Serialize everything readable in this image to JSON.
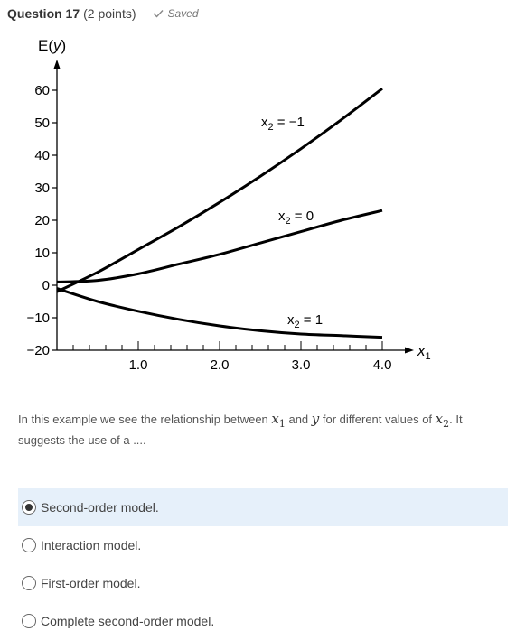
{
  "header": {
    "question_label": "Question 17",
    "points": "(2 points)",
    "saved": "Saved"
  },
  "chart_data": {
    "type": "line",
    "ylabel": "E(y)",
    "xlabel": "x1",
    "xlim": [
      0,
      4.0
    ],
    "ylim": [
      -20,
      60
    ],
    "x_ticks": [
      "1.0",
      "2.0",
      "3.0",
      "4.0"
    ],
    "y_ticks": [
      "60",
      "50",
      "40",
      "30",
      "20",
      "10",
      "0",
      "−10",
      "−20"
    ],
    "y_tick_values": [
      60,
      50,
      40,
      30,
      20,
      10,
      0,
      -10,
      -20
    ],
    "series": [
      {
        "name": "x2 = −1",
        "x": [
          0,
          0.5,
          1.0,
          1.5,
          2.0,
          2.5,
          3.0,
          3.5,
          4.0
        ],
        "values": [
          -2,
          4,
          11,
          18,
          25.5,
          33.5,
          42,
          51,
          60.5
        ]
      },
      {
        "name": "x2 = 0",
        "x": [
          0,
          0.5,
          1.0,
          1.5,
          2.0,
          2.5,
          3.0,
          3.5,
          4.0
        ],
        "values": [
          1,
          1.5,
          3.5,
          6.5,
          9.5,
          13,
          16.5,
          20,
          23
        ]
      },
      {
        "name": "x2 = 1",
        "x": [
          0,
          0.5,
          1.0,
          1.5,
          2.0,
          2.5,
          3.0,
          3.5,
          4.0
        ],
        "values": [
          -1,
          -5,
          -8,
          -10.5,
          -12.5,
          -14,
          -15,
          -15.5,
          -16
        ]
      }
    ]
  },
  "question": {
    "text_1": "In this example we see the relationship between ",
    "var_x1": "x",
    "var_x1_sub": "1",
    "text_2": " and ",
    "var_y": "y",
    "text_3": " for different values of ",
    "var_x2": "x",
    "var_x2_sub": "2",
    "text_4": ". It suggests the use of a ...."
  },
  "options": [
    {
      "label": "Second-order model.",
      "selected": true
    },
    {
      "label": "Interaction model.",
      "selected": false
    },
    {
      "label": "First-order model.",
      "selected": false
    },
    {
      "label": "Complete second-order model.",
      "selected": false
    }
  ]
}
